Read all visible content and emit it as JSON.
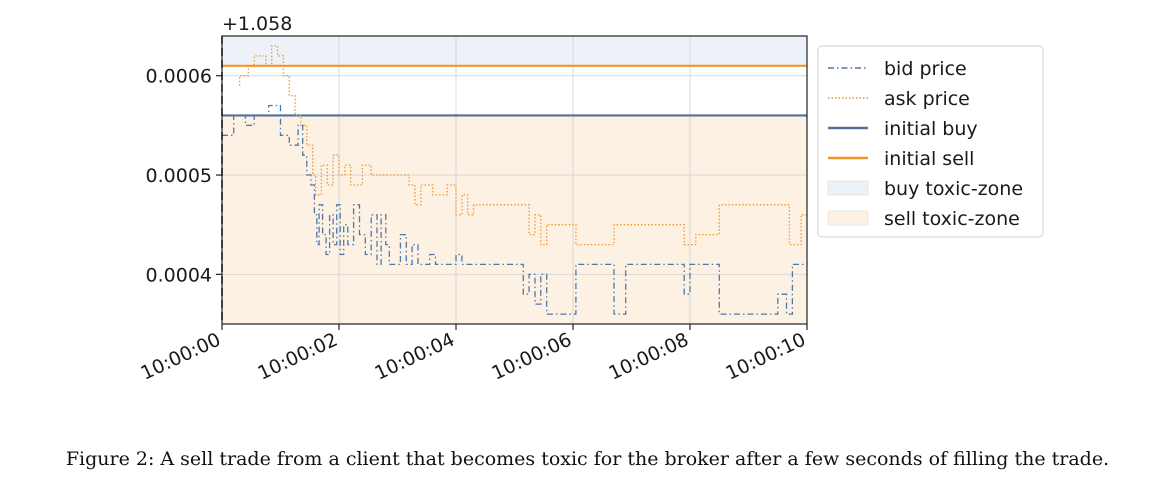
{
  "chart_data": {
    "type": "line",
    "y_offset_label": "+1.058",
    "x_ticks": [
      "10:00:00",
      "10:00:02",
      "10:00:04",
      "10:00:06",
      "10:00:08",
      "10:00:10"
    ],
    "x_range_seconds": [
      0,
      10
    ],
    "y_ticks": [
      {
        "value": 0.0004,
        "label": "0.0004"
      },
      {
        "value": 0.0005,
        "label": "0.0005"
      },
      {
        "value": 0.0006,
        "label": "0.0006"
      }
    ],
    "y_range": [
      0.00035,
      0.00064
    ],
    "grid": true,
    "legend_position": "outside-right",
    "trade_time_seconds": 0,
    "series": [
      {
        "name": "bid price",
        "style": "dashdot",
        "color": "#4e79a7",
        "points": [
          [
            0.0,
            0.00054
          ],
          [
            0.2,
            0.00054
          ],
          [
            0.2,
            0.00056
          ],
          [
            0.4,
            0.00056
          ],
          [
            0.4,
            0.00055
          ],
          [
            0.55,
            0.00055
          ],
          [
            0.55,
            0.00056
          ],
          [
            0.8,
            0.00056
          ],
          [
            0.8,
            0.00057
          ],
          [
            1.0,
            0.00057
          ],
          [
            1.0,
            0.00054
          ],
          [
            1.15,
            0.00054
          ],
          [
            1.15,
            0.00053
          ],
          [
            1.3,
            0.00053
          ],
          [
            1.3,
            0.00055
          ],
          [
            1.38,
            0.00055
          ],
          [
            1.38,
            0.00052
          ],
          [
            1.45,
            0.00052
          ],
          [
            1.45,
            0.0005
          ],
          [
            1.52,
            0.0005
          ],
          [
            1.52,
            0.00049
          ],
          [
            1.58,
            0.00049
          ],
          [
            1.58,
            0.00046
          ],
          [
            1.62,
            0.00046
          ],
          [
            1.62,
            0.00043
          ],
          [
            1.66,
            0.00043
          ],
          [
            1.66,
            0.00047
          ],
          [
            1.72,
            0.00047
          ],
          [
            1.72,
            0.00044
          ],
          [
            1.78,
            0.00044
          ],
          [
            1.78,
            0.00042
          ],
          [
            1.84,
            0.00042
          ],
          [
            1.84,
            0.00046
          ],
          [
            1.9,
            0.00046
          ],
          [
            1.9,
            0.00043
          ],
          [
            1.96,
            0.00043
          ],
          [
            1.96,
            0.00047
          ],
          [
            2.02,
            0.00047
          ],
          [
            2.02,
            0.00042
          ],
          [
            2.08,
            0.00042
          ],
          [
            2.08,
            0.00045
          ],
          [
            2.15,
            0.00045
          ],
          [
            2.15,
            0.00043
          ],
          [
            2.25,
            0.00043
          ],
          [
            2.25,
            0.00047
          ],
          [
            2.35,
            0.00047
          ],
          [
            2.35,
            0.00044
          ],
          [
            2.45,
            0.00044
          ],
          [
            2.45,
            0.00042
          ],
          [
            2.55,
            0.00042
          ],
          [
            2.55,
            0.00046
          ],
          [
            2.65,
            0.00046
          ],
          [
            2.65,
            0.00041
          ],
          [
            2.72,
            0.00041
          ],
          [
            2.72,
            0.00046
          ],
          [
            2.8,
            0.00046
          ],
          [
            2.8,
            0.00043
          ],
          [
            2.86,
            0.00043
          ],
          [
            2.86,
            0.00041
          ],
          [
            3.05,
            0.00041
          ],
          [
            3.05,
            0.00044
          ],
          [
            3.15,
            0.00044
          ],
          [
            3.15,
            0.00041
          ],
          [
            3.25,
            0.00041
          ],
          [
            3.25,
            0.00043
          ],
          [
            3.35,
            0.00043
          ],
          [
            3.35,
            0.00041
          ],
          [
            3.55,
            0.00041
          ],
          [
            3.55,
            0.00042
          ],
          [
            3.65,
            0.00042
          ],
          [
            3.65,
            0.00041
          ],
          [
            4.0,
            0.00041
          ],
          [
            4.0,
            0.00042
          ],
          [
            4.1,
            0.00042
          ],
          [
            4.1,
            0.00041
          ],
          [
            5.15,
            0.00041
          ],
          [
            5.15,
            0.00038
          ],
          [
            5.25,
            0.00038
          ],
          [
            5.25,
            0.0004
          ],
          [
            5.35,
            0.0004
          ],
          [
            5.35,
            0.00037
          ],
          [
            5.45,
            0.00037
          ],
          [
            5.45,
            0.0004
          ],
          [
            5.55,
            0.0004
          ],
          [
            5.55,
            0.00036
          ],
          [
            6.05,
            0.00036
          ],
          [
            6.05,
            0.00041
          ],
          [
            6.7,
            0.00041
          ],
          [
            6.7,
            0.00036
          ],
          [
            6.9,
            0.00036
          ],
          [
            6.9,
            0.00041
          ],
          [
            7.9,
            0.00041
          ],
          [
            7.9,
            0.00038
          ],
          [
            8.0,
            0.00038
          ],
          [
            8.0,
            0.00041
          ],
          [
            8.5,
            0.00041
          ],
          [
            8.5,
            0.00036
          ],
          [
            9.5,
            0.00036
          ],
          [
            9.5,
            0.00038
          ],
          [
            9.65,
            0.00038
          ],
          [
            9.65,
            0.00036
          ],
          [
            9.75,
            0.00036
          ],
          [
            9.75,
            0.00041
          ],
          [
            10.0,
            0.00041
          ]
        ]
      },
      {
        "name": "ask price",
        "style": "dotted",
        "color": "#f0962d",
        "points": [
          [
            0.3,
            0.00059
          ],
          [
            0.3,
            0.0006
          ],
          [
            0.45,
            0.0006
          ],
          [
            0.45,
            0.00061
          ],
          [
            0.55,
            0.00061
          ],
          [
            0.55,
            0.00062
          ],
          [
            0.75,
            0.00062
          ],
          [
            0.75,
            0.00061
          ],
          [
            0.85,
            0.00061
          ],
          [
            0.85,
            0.00063
          ],
          [
            0.95,
            0.00063
          ],
          [
            0.95,
            0.00062
          ],
          [
            1.05,
            0.00062
          ],
          [
            1.05,
            0.0006
          ],
          [
            1.15,
            0.0006
          ],
          [
            1.15,
            0.00058
          ],
          [
            1.25,
            0.00058
          ],
          [
            1.25,
            0.00056
          ],
          [
            1.35,
            0.00056
          ],
          [
            1.35,
            0.00055
          ],
          [
            1.45,
            0.00055
          ],
          [
            1.45,
            0.00053
          ],
          [
            1.55,
            0.00053
          ],
          [
            1.55,
            0.0005
          ],
          [
            1.6,
            0.0005
          ],
          [
            1.6,
            0.00048
          ],
          [
            1.7,
            0.00048
          ],
          [
            1.7,
            0.00051
          ],
          [
            1.8,
            0.00051
          ],
          [
            1.8,
            0.00049
          ],
          [
            1.9,
            0.00049
          ],
          [
            1.9,
            0.00052
          ],
          [
            2.0,
            0.00052
          ],
          [
            2.0,
            0.0005
          ],
          [
            2.1,
            0.0005
          ],
          [
            2.1,
            0.00051
          ],
          [
            2.2,
            0.00051
          ],
          [
            2.2,
            0.00049
          ],
          [
            2.4,
            0.00049
          ],
          [
            2.4,
            0.00051
          ],
          [
            2.55,
            0.00051
          ],
          [
            2.55,
            0.0005
          ],
          [
            3.2,
            0.0005
          ],
          [
            3.2,
            0.00049
          ],
          [
            3.3,
            0.00049
          ],
          [
            3.3,
            0.00047
          ],
          [
            3.4,
            0.00047
          ],
          [
            3.4,
            0.00049
          ],
          [
            3.6,
            0.00049
          ],
          [
            3.6,
            0.00048
          ],
          [
            3.85,
            0.00048
          ],
          [
            3.85,
            0.00049
          ],
          [
            4.0,
            0.00049
          ],
          [
            4.0,
            0.00046
          ],
          [
            4.1,
            0.00046
          ],
          [
            4.1,
            0.00048
          ],
          [
            4.2,
            0.00048
          ],
          [
            4.2,
            0.00046
          ],
          [
            4.3,
            0.00046
          ],
          [
            4.3,
            0.00047
          ],
          [
            5.25,
            0.00047
          ],
          [
            5.25,
            0.00044
          ],
          [
            5.35,
            0.00044
          ],
          [
            5.35,
            0.00046
          ],
          [
            5.45,
            0.00046
          ],
          [
            5.45,
            0.00043
          ],
          [
            5.55,
            0.00043
          ],
          [
            5.55,
            0.00045
          ],
          [
            6.05,
            0.00045
          ],
          [
            6.05,
            0.00043
          ],
          [
            6.7,
            0.00043
          ],
          [
            6.7,
            0.00045
          ],
          [
            7.9,
            0.00045
          ],
          [
            7.9,
            0.00043
          ],
          [
            8.1,
            0.00043
          ],
          [
            8.1,
            0.00044
          ],
          [
            8.5,
            0.00044
          ],
          [
            8.5,
            0.00047
          ],
          [
            9.7,
            0.00047
          ],
          [
            9.7,
            0.00043
          ],
          [
            9.9,
            0.00043
          ],
          [
            9.9,
            0.00046
          ],
          [
            10.0,
            0.00046
          ]
        ]
      },
      {
        "name": "initial buy",
        "style": "solid",
        "color": "#50709a",
        "value": 0.00056
      },
      {
        "name": "initial sell",
        "style": "solid",
        "color": "#f0962d",
        "value": 0.00061
      }
    ],
    "zones": [
      {
        "name": "buy toxic-zone",
        "color": "#edf1f8",
        "from": 0.00061,
        "to": 0.00064
      },
      {
        "name": "sell toxic-zone",
        "color": "#fdf1e3",
        "from": 0.00035,
        "to": 0.00056
      }
    ]
  },
  "caption": "Figure 2: A sell trade from a client that becomes toxic for the broker after a few seconds of filling the trade."
}
